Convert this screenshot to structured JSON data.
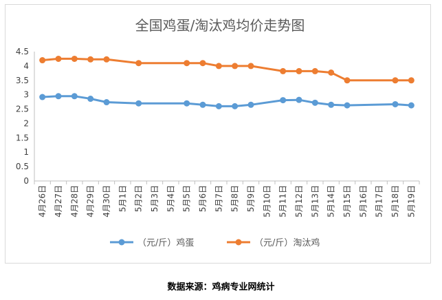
{
  "chart_data": {
    "type": "line",
    "title": "全国鸡蛋/淘汰鸡均价走势图",
    "xlabel": "",
    "ylabel": "",
    "categories": [
      "4月26日",
      "4月27日",
      "4月28日",
      "4月29日",
      "4月30日",
      "5月1日",
      "5月2日",
      "5月3日",
      "5月4日",
      "5月5日",
      "5月6日",
      "5月7日",
      "5月8日",
      "5月9日",
      "5月10日",
      "5月11日",
      "5月12日",
      "5月13日",
      "5月14日",
      "5月15日",
      "5月16日",
      "5月17日",
      "5月18日",
      "5月19日"
    ],
    "yticks": [
      "0",
      "0.5",
      "1",
      "1.5",
      "2",
      "2.5",
      "3",
      "3.5",
      "4",
      "4.5"
    ],
    "ylim": [
      0,
      4.5
    ],
    "grid": false,
    "legend_position": "bottom",
    "series": [
      {
        "name": "（元/斤）鸡蛋",
        "color": "#5b9bd5",
        "values": [
          2.92,
          2.95,
          2.95,
          2.86,
          2.74,
          null,
          2.7,
          null,
          null,
          2.7,
          2.65,
          2.6,
          2.6,
          2.65,
          null,
          2.81,
          2.82,
          2.72,
          2.65,
          2.63,
          null,
          null,
          2.67,
          2.63
        ]
      },
      {
        "name": "（元/斤）淘汰鸡",
        "color": "#ed7d31",
        "values": [
          4.2,
          4.25,
          4.25,
          4.23,
          4.23,
          null,
          4.1,
          null,
          null,
          4.1,
          4.1,
          4.0,
          4.0,
          4.0,
          null,
          3.82,
          3.82,
          3.82,
          3.77,
          3.5,
          null,
          null,
          3.5,
          3.5
        ]
      }
    ]
  },
  "source_note": "数据来源：鸡病专业网统计"
}
